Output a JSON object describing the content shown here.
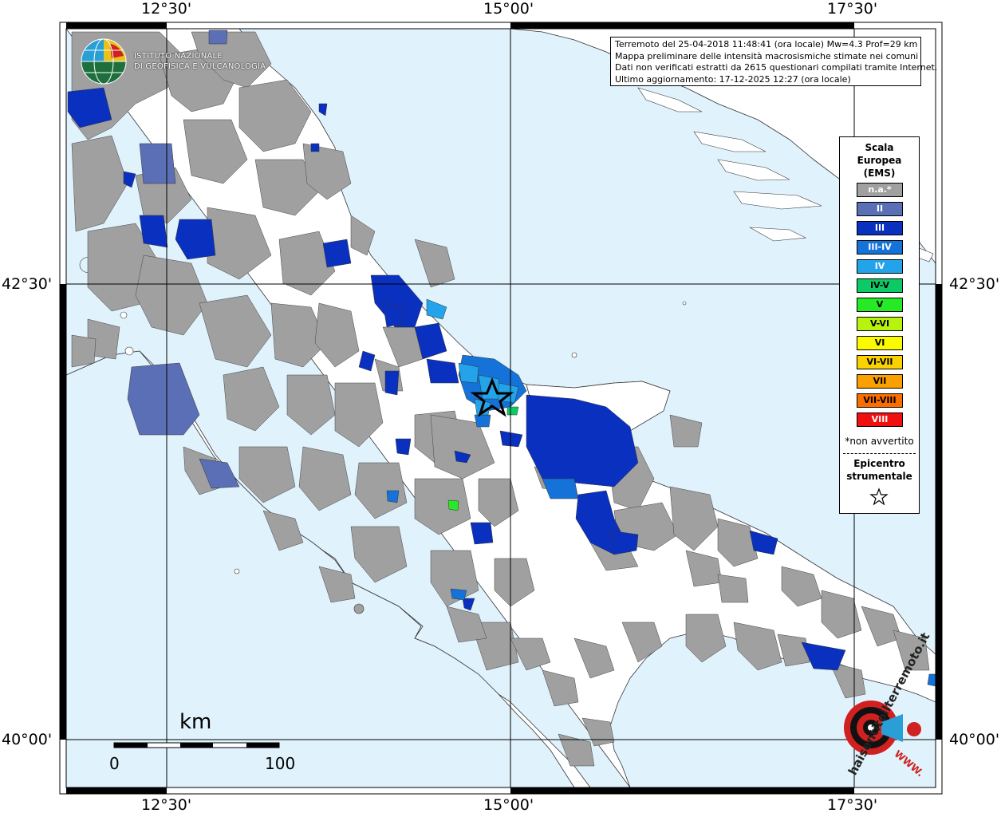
{
  "map": {
    "longitude_labels": [
      "12°30'",
      "15°00'",
      "17°30'"
    ],
    "latitude_labels": [
      "42°30'",
      "40°00'"
    ],
    "sea_color": "#e0f2fc",
    "land_color": "#ffffff",
    "na_color": "#a0a0a0"
  },
  "logo": {
    "line1": "ISTITUTO NAZIONALE",
    "line2": "DI GEOFISICA E VULCANOLOGIA"
  },
  "info": {
    "line1": "Terremoto del 25-04-2018 11:48:41 (ora locale) Mw=4.3 Prof=29 km",
    "line2": "Mappa preliminare delle intensità macrosismiche stimate nei comuni",
    "line3": "Dati non verificati estratti da 2615 questionari compilati tramite Internet.",
    "line4": "Ultimo aggiornamento: 17-12-2025 12:27 (ora locale)"
  },
  "legend": {
    "title_line1": "Scala",
    "title_line2": "Europea",
    "title_line3": "(EMS)",
    "classes": [
      {
        "label": "n.a.*",
        "color": "#a0a0a0",
        "text_color": "#ffffff"
      },
      {
        "label": "II",
        "color": "#5a6fb5",
        "text_color": "#ffffff"
      },
      {
        "label": "III",
        "color": "#0a30c0",
        "text_color": "#ffffff"
      },
      {
        "label": "III-IV",
        "color": "#1572d8",
        "text_color": "#ffffff"
      },
      {
        "label": "IV",
        "color": "#23a4ea",
        "text_color": "#ffffff"
      },
      {
        "label": "IV-V",
        "color": "#0ccb66",
        "text_color": "#000000"
      },
      {
        "label": "V",
        "color": "#26ea26",
        "text_color": "#000000"
      },
      {
        "label": "V-VI",
        "color": "#b8f20f",
        "text_color": "#000000"
      },
      {
        "label": "VI",
        "color": "#fafa00",
        "text_color": "#000000"
      },
      {
        "label": "VI-VII",
        "color": "#fad200",
        "text_color": "#000000"
      },
      {
        "label": "VII",
        "color": "#faa000",
        "text_color": "#000000"
      },
      {
        "label": "VII-VIII",
        "color": "#fa6e00",
        "text_color": "#000000"
      },
      {
        "label": "VIII",
        "color": "#f01010",
        "text_color": "#ffffff"
      }
    ],
    "note": "*non avvertito",
    "epicenter_line1": "Epicentro",
    "epicenter_line2": "strumentale"
  },
  "scale": {
    "unit": "km",
    "start": "0",
    "end": "100"
  },
  "watermark": {
    "text": "haisentitoilterremoto.it",
    "url_text": "WWW."
  }
}
